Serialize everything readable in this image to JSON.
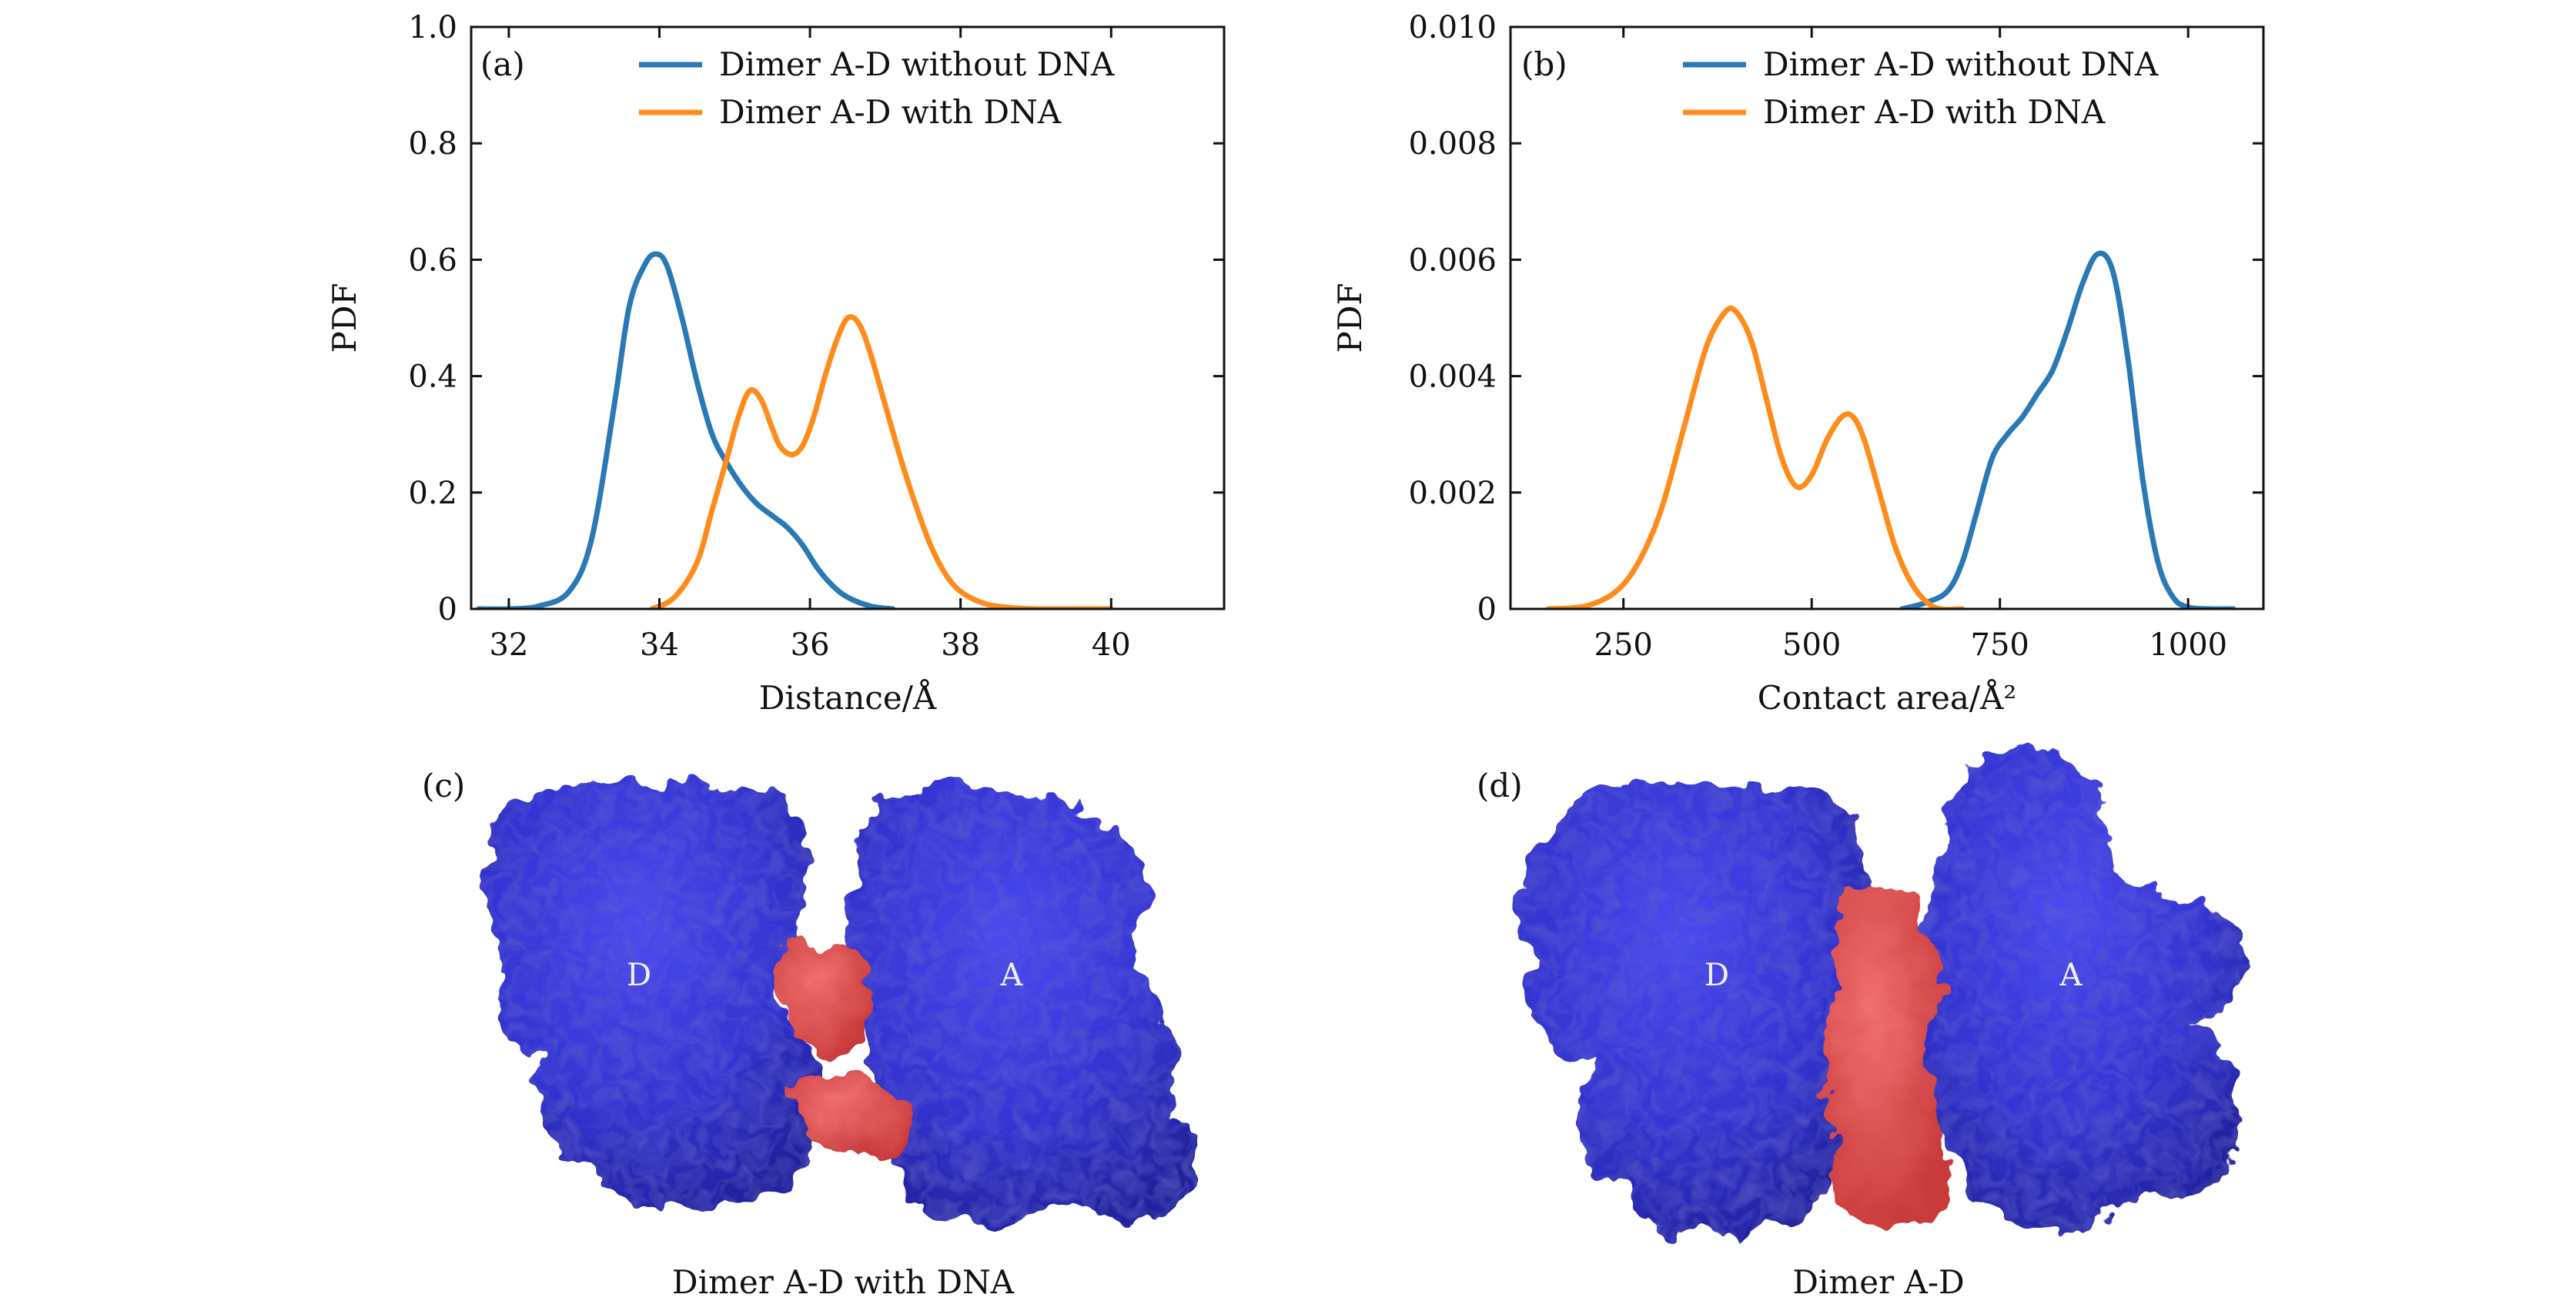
{
  "colors": {
    "blue": "#2a78b4",
    "orange": "#ff8c1a",
    "protein": "#3a3ad8",
    "contact": "#e25050"
  },
  "chart_data": [
    {
      "panel": "(a)",
      "type": "line",
      "xlabel": "Distance/Å",
      "ylabel": "PDF",
      "xlim": [
        31.5,
        41.5
      ],
      "ylim": [
        0,
        1.0
      ],
      "xticks": [
        32,
        34,
        36,
        38,
        40
      ],
      "xtick_labels": [
        "32",
        "34",
        "36",
        "38",
        "40"
      ],
      "yticks": [
        0,
        0.2,
        0.4,
        0.6,
        0.8,
        1.0
      ],
      "ytick_labels": [
        "0",
        "0.2",
        "0.4",
        "0.6",
        "0.8",
        "1.0"
      ],
      "legend": "top-right",
      "series": [
        {
          "name": "Dimer A-D without DNA",
          "color": "#2a78b4",
          "x": [
            31.6,
            32.0,
            32.4,
            32.8,
            33.1,
            33.4,
            33.6,
            33.8,
            33.95,
            34.1,
            34.3,
            34.5,
            34.7,
            34.9,
            35.1,
            35.3,
            35.5,
            35.7,
            35.9,
            36.1,
            36.3,
            36.5,
            36.8,
            37.1
          ],
          "y": [
            0.0,
            0.0,
            0.005,
            0.03,
            0.12,
            0.35,
            0.52,
            0.59,
            0.61,
            0.59,
            0.5,
            0.39,
            0.3,
            0.25,
            0.21,
            0.18,
            0.16,
            0.14,
            0.11,
            0.07,
            0.04,
            0.02,
            0.005,
            0.0
          ]
        },
        {
          "name": "Dimer A-D with DNA",
          "color": "#ff8c1a",
          "x": [
            33.9,
            34.2,
            34.5,
            34.7,
            34.9,
            35.05,
            35.2,
            35.35,
            35.5,
            35.6,
            35.75,
            35.9,
            36.05,
            36.2,
            36.35,
            36.5,
            36.65,
            36.8,
            37.0,
            37.2,
            37.4,
            37.6,
            37.8,
            38.0,
            38.3,
            38.6,
            39.0,
            39.5,
            40.0
          ],
          "y": [
            0.0,
            0.02,
            0.08,
            0.17,
            0.26,
            0.33,
            0.375,
            0.36,
            0.31,
            0.28,
            0.265,
            0.28,
            0.33,
            0.4,
            0.46,
            0.5,
            0.49,
            0.44,
            0.35,
            0.26,
            0.18,
            0.11,
            0.06,
            0.03,
            0.01,
            0.003,
            0.0,
            0.0,
            0.0
          ]
        }
      ]
    },
    {
      "panel": "(b)",
      "type": "line",
      "xlabel": "Contact area/Å²",
      "ylabel": "PDF",
      "xlim": [
        100,
        1100
      ],
      "ylim": [
        0,
        0.01
      ],
      "xticks": [
        250,
        500,
        750,
        1000
      ],
      "xtick_labels": [
        "250",
        "500",
        "750",
        "1000"
      ],
      "yticks": [
        0,
        0.002,
        0.004,
        0.006,
        0.008,
        0.01
      ],
      "ytick_labels": [
        "0",
        "0.002",
        "0.004",
        "0.006",
        "0.008",
        "0.010"
      ],
      "legend": "top-right",
      "series": [
        {
          "name": "Dimer A-D without DNA",
          "color": "#2a78b4",
          "x": [
            620,
            650,
            680,
            700,
            720,
            740,
            760,
            780,
            800,
            820,
            840,
            860,
            880,
            900,
            920,
            940,
            960,
            980,
            1000,
            1030,
            1060
          ],
          "y": [
            0.0,
            0.0001,
            0.0003,
            0.0008,
            0.0017,
            0.0026,
            0.003,
            0.0033,
            0.0037,
            0.0041,
            0.0048,
            0.0056,
            0.0061,
            0.0058,
            0.0043,
            0.0022,
            0.0008,
            0.0002,
            3e-05,
            0.0,
            0.0
          ]
        },
        {
          "name": "Dimer A-D with DNA",
          "color": "#ff8c1a",
          "x": [
            150,
            200,
            240,
            270,
            300,
            330,
            360,
            385,
            400,
            420,
            440,
            460,
            480,
            500,
            520,
            540,
            555,
            570,
            590,
            610,
            630,
            650,
            670,
            700
          ],
          "y": [
            0.0,
            5e-05,
            0.0003,
            0.0008,
            0.0017,
            0.0031,
            0.0045,
            0.0051,
            0.0051,
            0.0046,
            0.0036,
            0.0026,
            0.0021,
            0.0023,
            0.0029,
            0.0033,
            0.0033,
            0.0029,
            0.002,
            0.0011,
            0.0005,
            0.00015,
            0.0,
            0.0
          ]
        }
      ]
    }
  ],
  "panels": {
    "c": {
      "letter": "(c)",
      "caption": "Dimer A-D with DNA",
      "label_left": "D",
      "label_right": "A"
    },
    "d": {
      "letter": "(d)",
      "caption": "Dimer A-D",
      "label_left": "D",
      "label_right": "A"
    }
  }
}
